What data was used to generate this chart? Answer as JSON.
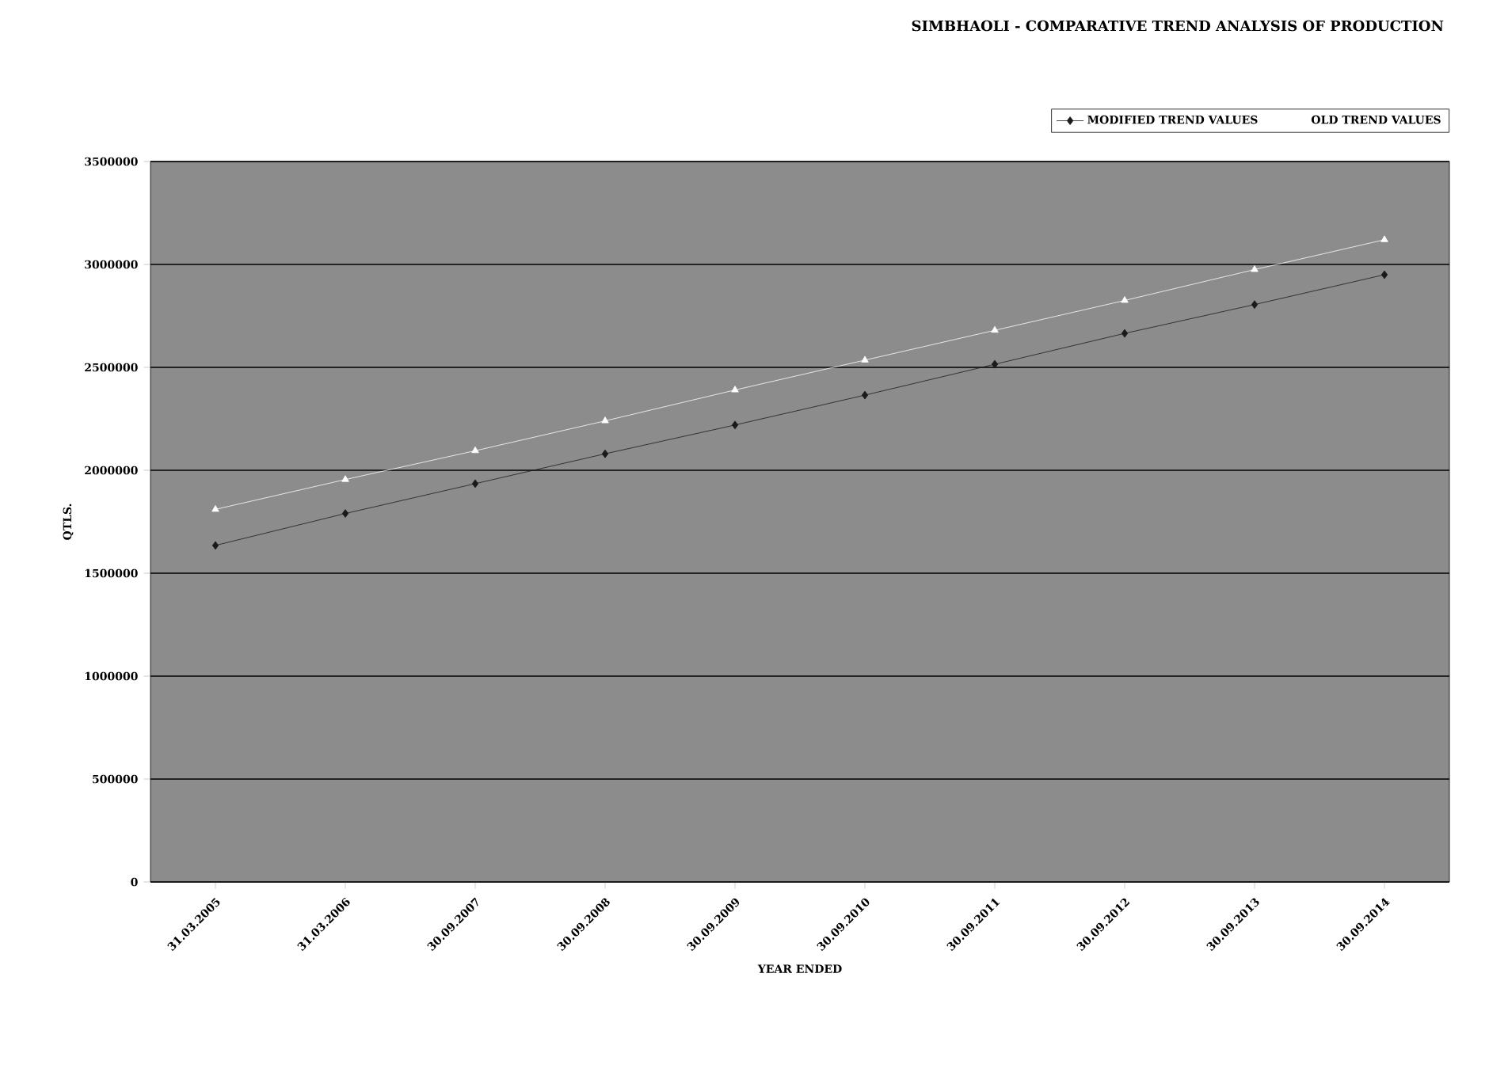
{
  "chart_data": {
    "type": "line",
    "title": "SIMBHAOLI - COMPARATIVE TREND ANALYSIS OF PRODUCTION",
    "xlabel": "YEAR ENDED",
    "ylabel": "QTLS.",
    "categories": [
      "31.03.2005",
      "31.03.2006",
      "30.09.2007",
      "30.09.2008",
      "30.09.2009",
      "30.09.2010",
      "30.09.2011",
      "30.09.2012",
      "30.09.2013",
      "30.09.2014"
    ],
    "series": [
      {
        "name": "MODIFIED TREND VALUES",
        "color": "#1a1a1a",
        "marker": "diamond",
        "values": [
          1635000,
          1790000,
          1935000,
          2080000,
          2220000,
          2365000,
          2515000,
          2665000,
          2805000,
          2950000
        ]
      },
      {
        "name": "OLD TREND VALUES",
        "color": "#ffffff",
        "marker": "triangle",
        "values": [
          1810000,
          1955000,
          2095000,
          2240000,
          2390000,
          2535000,
          2680000,
          2825000,
          2975000,
          3120000
        ]
      }
    ],
    "ylim": [
      0,
      3500000
    ],
    "yticks": [
      0,
      500000,
      1000000,
      1500000,
      2000000,
      2500000,
      3000000,
      3500000
    ],
    "grid": "y",
    "legend": "top right"
  }
}
